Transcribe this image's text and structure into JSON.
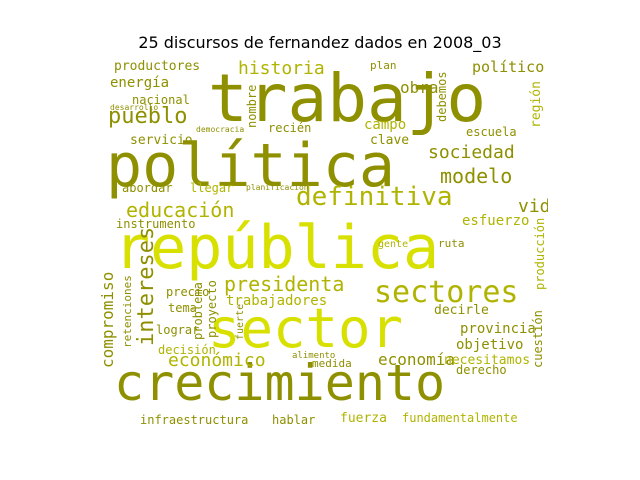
{
  "title": "25 discursos de fernandez dados en 2008_03",
  "palette": {
    "bright": "#d8e000",
    "mid": "#b0b400",
    "olive": "#8e9000",
    "dark": "#6f7000"
  },
  "words": {
    "trabajo": "trabajo",
    "politica": "política",
    "republica": "república",
    "sector": "sector",
    "crecimiento": "crecimiento",
    "sectores": "sectores",
    "definitiva": "definitiva",
    "presidenta": "presidenta",
    "educacion": "educación",
    "pueblo": "pueblo",
    "historia": "historia",
    "intereses": "intereses",
    "sociedad": "sociedad",
    "modelo": "modelo",
    "vida": "vida",
    "economico": "económico",
    "economia": "economía",
    "trabajadores": "trabajadores",
    "productores": "productores",
    "energia": "energía",
    "nacional": "nacional",
    "servicio": "servicio",
    "obra": "obra",
    "politico": "político",
    "campo": "campo",
    "clave": "clave",
    "escuela": "escuela",
    "region": "región",
    "abordar": "abordar",
    "llegar": "llegar",
    "esfuerzo": "esfuerzo",
    "instrumento": "instrumento",
    "precio": "precio",
    "tema": "tema",
    "lograr": "lograr",
    "decision": "decisión",
    "compromiso": "compromiso",
    "problema": "problema",
    "provincia": "provincia",
    "objetivo": "objetivo",
    "decirle": "decirle",
    "necesitamos": "necesitamos",
    "derecho": "derecho",
    "fuerza": "fuerza",
    "fundamentalmente": "fundamentalmente",
    "infraestructura": "infraestructura",
    "hablar": "hablar",
    "medida": "medida",
    "recien": "recién",
    "nombre": "nombre",
    "debemos": "debemos",
    "produccion": "producción",
    "cuestion": "cuestión",
    "gente": "gente",
    "ruta": "ruta",
    "plan": "plan",
    "desarrollo": "desarrollo",
    "democracia": "democracia",
    "retenciones": "retenciones",
    "alimento": "alimento",
    "fuerte": "fuerte",
    "proyecto": "proyecto",
    "planificacion": "planificación"
  }
}
